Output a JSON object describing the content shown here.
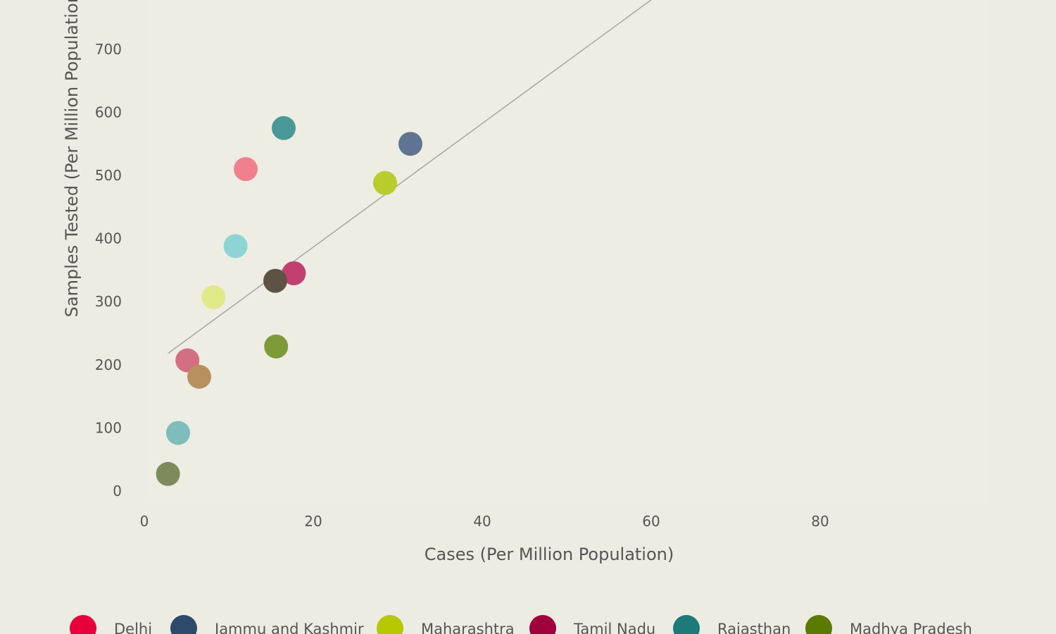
{
  "chart_data": {
    "type": "scatter",
    "title": "",
    "xlabel": "Cases (Per Million Population)",
    "ylabel": "Samples Tested (Per Million Population)",
    "xlim": [
      -6,
      100
    ],
    "ylim": [
      -15,
      790
    ],
    "xticks": [
      0,
      20,
      40,
      60,
      80
    ],
    "xtick_labels": [
      "0",
      "20",
      "40",
      "60",
      "80"
    ],
    "yticks": [
      0,
      100,
      200,
      300,
      400,
      500,
      600,
      700
    ],
    "ytick_labels": [
      "0",
      "100",
      "200",
      "300",
      "400",
      "500",
      "600",
      "700"
    ],
    "grid": false,
    "legend_position": "bottom",
    "legend": [
      {
        "name": "Delhi",
        "color": "#e8003d"
      },
      {
        "name": "Jammu and Kashmir",
        "color": "#2e4a6b"
      },
      {
        "name": "Maharashtra",
        "color": "#b5c800"
      },
      {
        "name": "Tamil Nadu",
        "color": "#a0003c"
      },
      {
        "name": "Rajasthan",
        "color": "#1e7a78"
      },
      {
        "name": "Madhya Pradesh",
        "color": "#5a7a00"
      }
    ],
    "points": [
      {
        "x": 12,
        "y": 510,
        "color": "#f0808c"
      },
      {
        "x": 16.5,
        "y": 575,
        "color": "#4a9898"
      },
      {
        "x": 31.5,
        "y": 550,
        "color": "#5f7490"
      },
      {
        "x": 28.5,
        "y": 488,
        "color": "#b8cc2e"
      },
      {
        "x": 10.8,
        "y": 388,
        "color": "#8fd4d4"
      },
      {
        "x": 17.7,
        "y": 345,
        "color": "#c24070"
      },
      {
        "x": 15.5,
        "y": 333,
        "color": "#5e5244"
      },
      {
        "x": 8.2,
        "y": 307,
        "color": "#dfea88"
      },
      {
        "x": 15.6,
        "y": 229,
        "color": "#7f9a38"
      },
      {
        "x": 5.1,
        "y": 207,
        "color": "#d46e82"
      },
      {
        "x": 6.5,
        "y": 181,
        "color": "#b89060"
      },
      {
        "x": 4,
        "y": 92,
        "color": "#7fbcbc"
      },
      {
        "x": 2.8,
        "y": 27,
        "color": "#7c8a5c"
      }
    ],
    "trendline": {
      "x": [
        2.8,
        60.7
      ],
      "y": [
        218,
        785
      ]
    }
  }
}
